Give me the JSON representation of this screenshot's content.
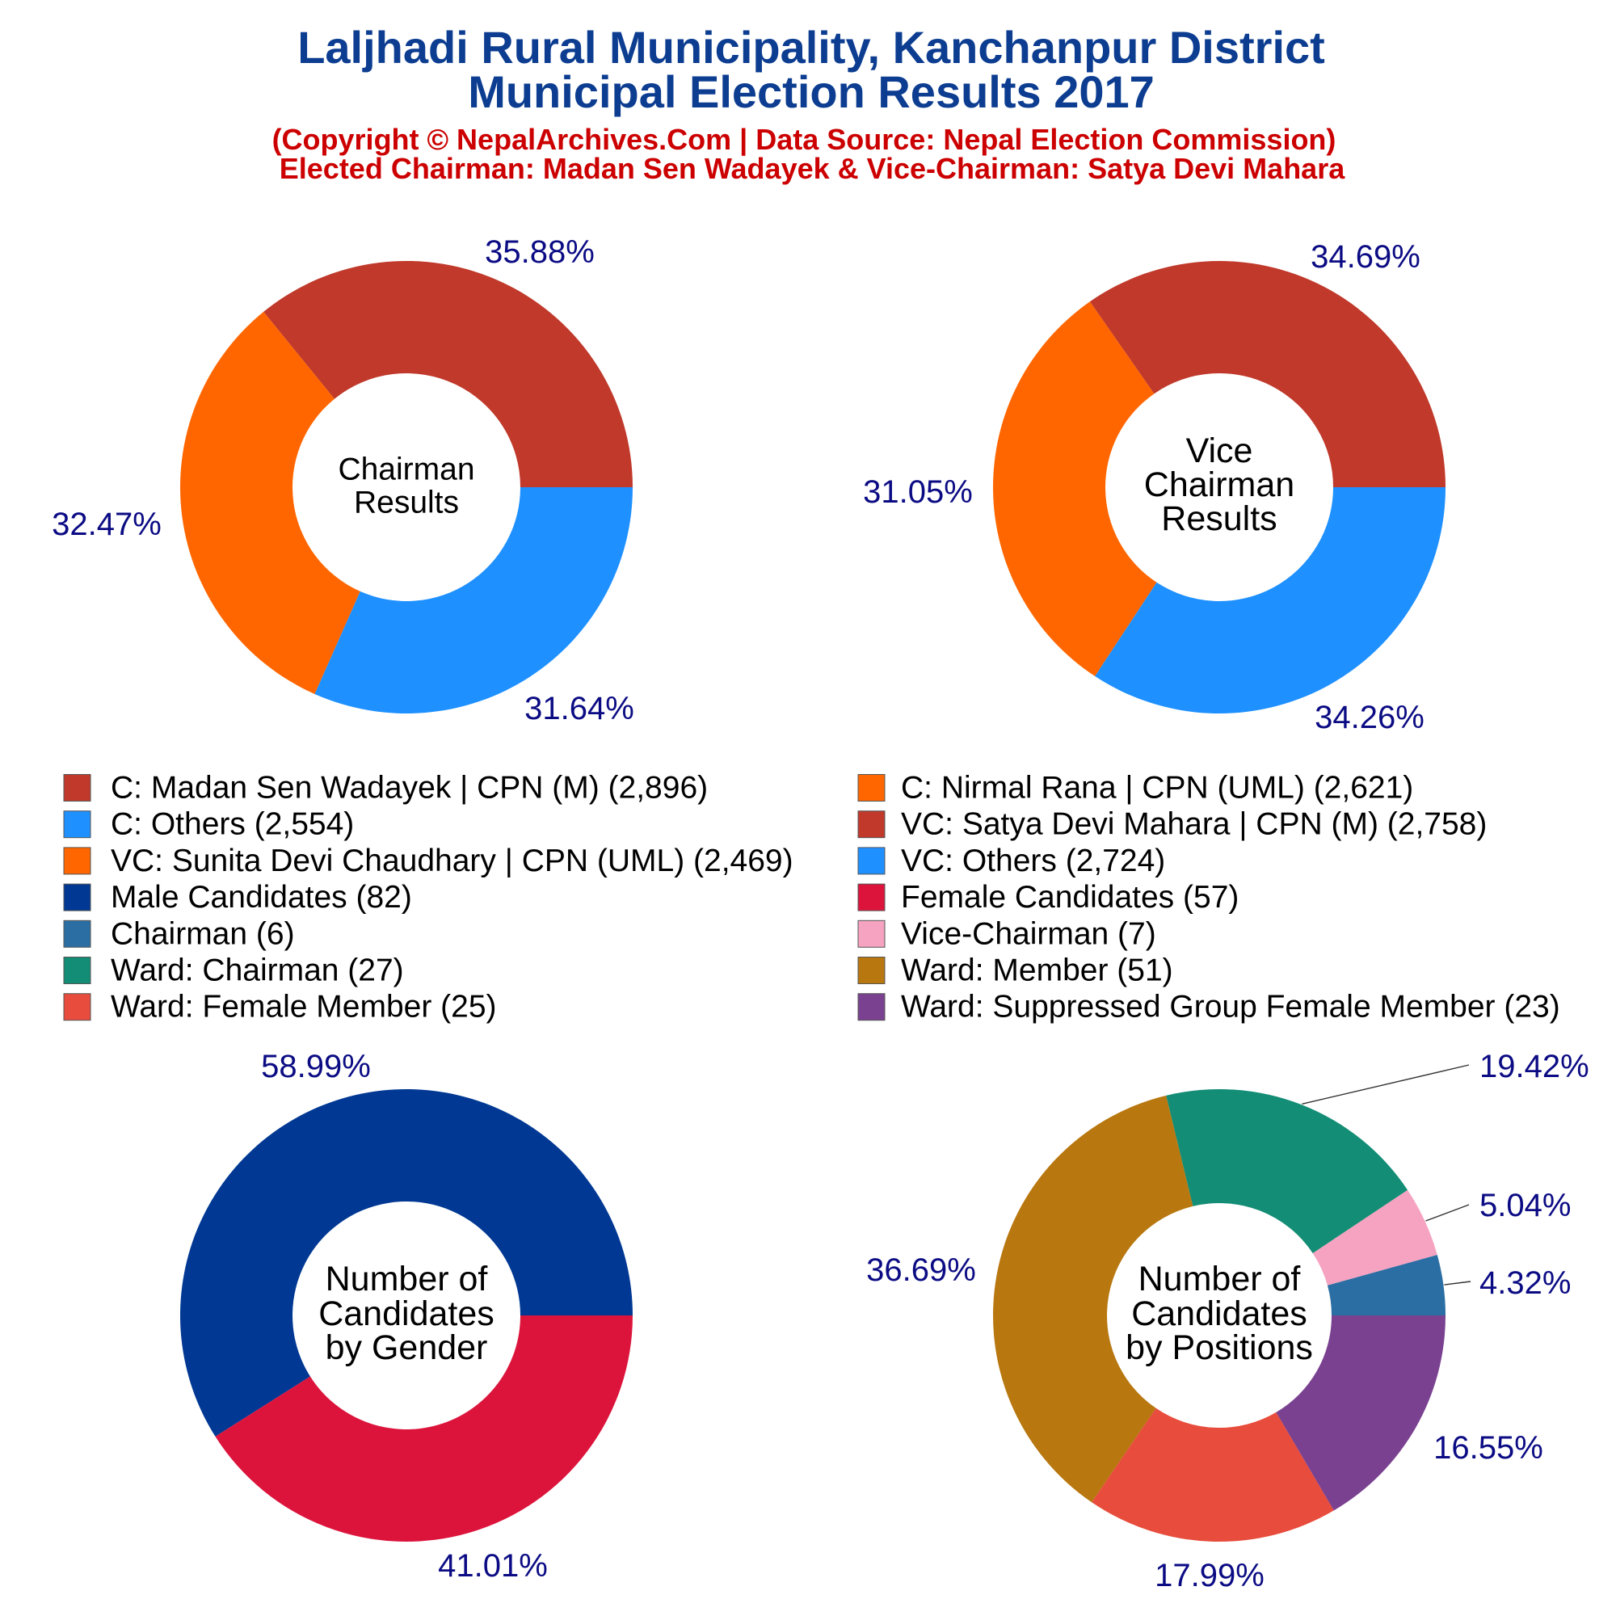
{
  "header": {
    "title_line1": "Laljhadi Rural Municipality, Kanchanpur District",
    "title_line2": "Municipal Election Results 2017",
    "subtitle_line1": "(Copyright © NepalArchives.Com | Data Source: Nepal Election Commission)",
    "subtitle_line2": "Elected Chairman: Madan Sen Wadayek & Vice-Chairman: Satya Devi Mahara"
  },
  "theme": {
    "title_color": "#0c3d91",
    "subtitle_color": "#cc0000",
    "percent_label_color": "#0b0b84",
    "leader_line_color": "#333333"
  },
  "chart_data": [
    {
      "type": "pie",
      "donut": true,
      "center_text": [
        "Chairman",
        "Results"
      ],
      "categories": [
        "C: Madan Sen Wadayek | CPN (M) (2,896)",
        "C: Nirmal Rana | CPN (UML) (2,621)",
        "C: Others (2,554)"
      ],
      "values": [
        2896,
        2621,
        2554
      ],
      "labels": [
        "35.88%",
        "32.47%",
        "31.64%"
      ],
      "colors": [
        "#c0392b",
        "#ff6600",
        "#1e90ff"
      ]
    },
    {
      "type": "pie",
      "donut": true,
      "center_text": [
        "Vice",
        "Chairman",
        "Results"
      ],
      "categories": [
        "VC: Satya Devi Mahara | CPN (M) (2,758)",
        "VC: Sunita Devi Chaudhary | CPN (UML) (2,469)",
        "VC: Others (2,724)"
      ],
      "values": [
        2758,
        2469,
        2724
      ],
      "labels": [
        "34.69%",
        "31.05%",
        "34.26%"
      ],
      "colors": [
        "#c0392b",
        "#ff6600",
        "#1e90ff"
      ]
    },
    {
      "type": "pie",
      "donut": true,
      "center_text": [
        "Number of",
        "Candidates",
        "by Gender"
      ],
      "categories": [
        "Male Candidates (82)",
        "Female Candidates (57)"
      ],
      "values": [
        82,
        57
      ],
      "labels": [
        "58.99%",
        "41.01%"
      ],
      "colors": [
        "#003893",
        "#dc143c"
      ]
    },
    {
      "type": "pie",
      "donut": true,
      "center_text": [
        "Number of",
        "Candidates",
        "by Positions"
      ],
      "categories": [
        "Chairman (6)",
        "Vice-Chairman (7)",
        "Ward: Chairman (27)",
        "Ward: Member (51)",
        "Ward: Female Member (25)",
        "Ward: Suppressed Group Female Member (23)"
      ],
      "values": [
        6,
        7,
        27,
        51,
        25,
        23
      ],
      "labels": [
        "4.32%",
        "5.04%",
        "19.42%",
        "36.69%",
        "17.99%",
        "16.55%"
      ],
      "colors": [
        "#2b6ea3",
        "#f5a3c0",
        "#138d75",
        "#b8770f",
        "#e74c3c",
        "#7a4190"
      ]
    }
  ]
}
